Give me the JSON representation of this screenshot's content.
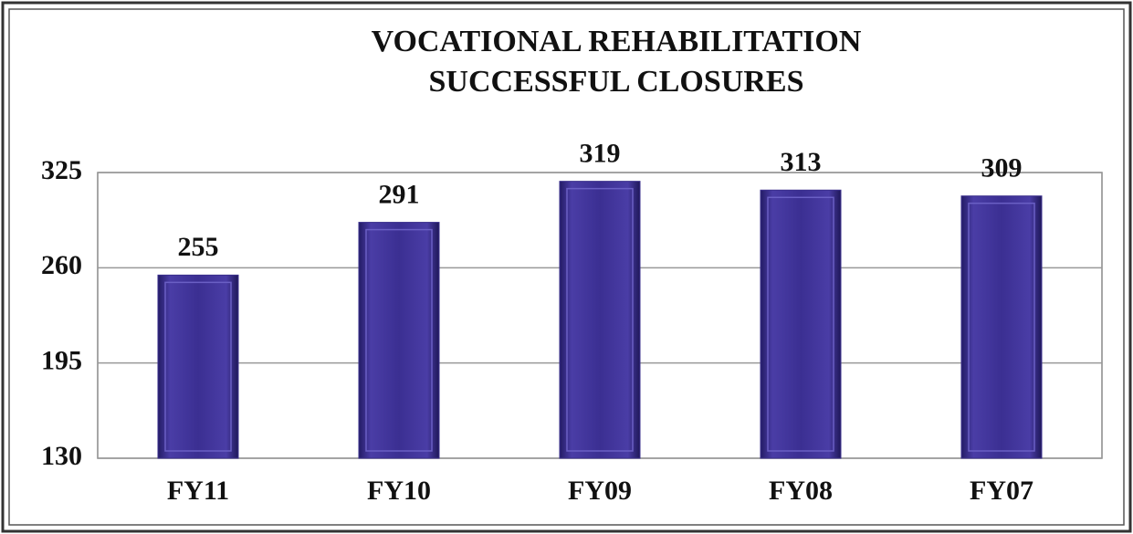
{
  "chart_data": {
    "type": "bar",
    "title": [
      "VOCATIONAL REHABILITATION",
      "SUCCESSFUL CLOSURES"
    ],
    "categories": [
      "FY11",
      "FY10",
      "FY09",
      "FY08",
      "FY07"
    ],
    "values": [
      255,
      291,
      319,
      313,
      309
    ],
    "color": "#3a2f8c",
    "ylim": [
      130,
      325
    ],
    "yticks": [
      130,
      195,
      260,
      325
    ],
    "grid": true
  }
}
